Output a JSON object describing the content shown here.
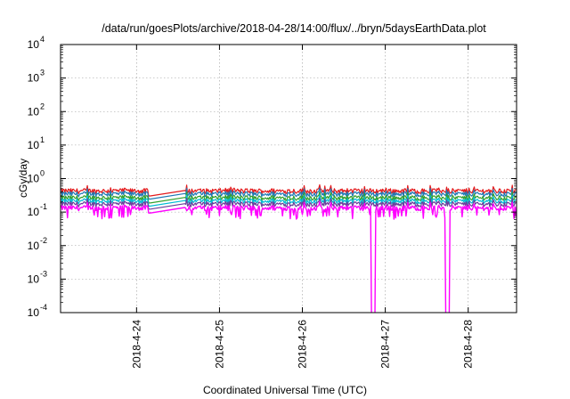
{
  "chart_data": {
    "type": "line",
    "title": "/data/run/goesPlots/archive/2018-04-28/14:00/flux/../bryn/5daysEarthData.plot",
    "xlabel": "Coordinated Universal Time (UTC)",
    "ylabel": "cGy/day",
    "yscale": "log",
    "ylim": [
      0.0001,
      10000
    ],
    "xlim": [
      "2018-04-23 02:00",
      "2018-04-28 14:00"
    ],
    "y_ticks": [
      {
        "mantissa": "10",
        "exp": "-4"
      },
      {
        "mantissa": "10",
        "exp": "-3"
      },
      {
        "mantissa": "10",
        "exp": "-2"
      },
      {
        "mantissa": "10",
        "exp": "-1"
      },
      {
        "mantissa": "10",
        "exp": "0"
      },
      {
        "mantissa": "10",
        "exp": "1"
      },
      {
        "mantissa": "10",
        "exp": "2"
      },
      {
        "mantissa": "10",
        "exp": "3"
      },
      {
        "mantissa": "10",
        "exp": "4"
      }
    ],
    "x_ticks": [
      {
        "date": "2018-04-24 00:00",
        "label": "2018-4-24"
      },
      {
        "date": "2018-04-25 00:00",
        "label": "2018-4-25"
      },
      {
        "date": "2018-04-26 00:00",
        "label": "2018-4-26"
      },
      {
        "date": "2018-04-27 00:00",
        "label": "2018-4-27"
      },
      {
        "date": "2018-04-28 00:00",
        "label": "2018-4-28"
      }
    ],
    "grid": true,
    "data_gaps": [
      {
        "start": "2018-04-24 04:00",
        "end": "2018-04-24 14:00"
      }
    ],
    "dropouts": [
      {
        "start": "2018-04-26 20:00",
        "end": "2018-04-26 21:00",
        "min": 0.0001
      },
      {
        "start": "2018-04-27 17:30",
        "end": "2018-04-27 18:30",
        "min": 0.0001
      }
    ],
    "series": [
      {
        "color": "#e41a1c",
        "level": 0.42
      },
      {
        "color": "#1f78b4",
        "level": 0.34
      },
      {
        "color": "#33a02c",
        "level": 0.26
      },
      {
        "color": "#00bcd4",
        "level": 0.21
      },
      {
        "color": "#6a3d9a",
        "level": 0.17
      },
      {
        "color": "#ff00ff",
        "level": 0.13
      }
    ]
  }
}
